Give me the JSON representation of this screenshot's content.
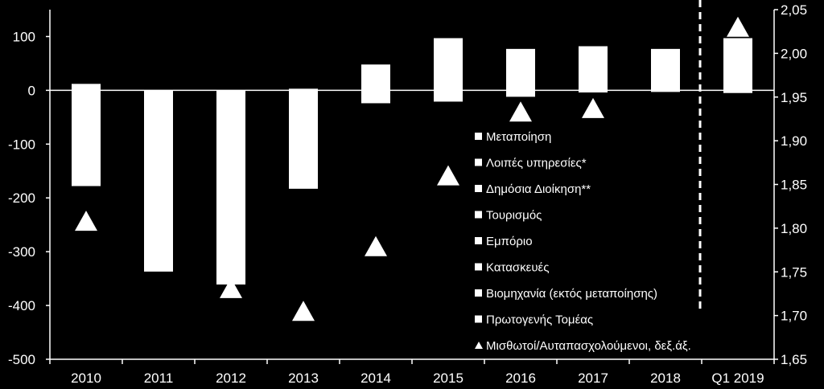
{
  "chart_data": {
    "type": "bar",
    "categories": [
      "2010",
      "2011",
      "2012",
      "2013",
      "2014",
      "2015",
      "2016",
      "2017",
      "2018",
      "Q1 2019"
    ],
    "left_axis": {
      "ylim": [
        -500,
        150
      ],
      "ticks": [
        100,
        0,
        -100,
        -200,
        -300,
        -400,
        -500
      ],
      "tick_labels": [
        "100",
        "0",
        "-100",
        "-200",
        "-300",
        "-400",
        "-500"
      ]
    },
    "right_axis": {
      "ylim": [
        1.65,
        2.05
      ],
      "ticks": [
        2.05,
        2.0,
        1.95,
        1.9,
        1.85,
        1.8,
        1.75,
        1.7,
        1.65
      ],
      "tick_labels": [
        "2,05",
        "2,00",
        "1,95",
        "1,90",
        "1,85",
        "1,80",
        "1,75",
        "1,70",
        "1,65"
      ]
    },
    "bars": [
      {
        "top": 12,
        "bottom": -178
      },
      {
        "top": 0,
        "bottom": -337
      },
      {
        "top": 0,
        "bottom": -361
      },
      {
        "top": 3,
        "bottom": -183
      },
      {
        "top": 48,
        "bottom": -24
      },
      {
        "top": 97,
        "bottom": -21
      },
      {
        "top": 77,
        "bottom": -12
      },
      {
        "top": 82,
        "bottom": -4
      },
      {
        "top": 77,
        "bottom": -3
      },
      {
        "top": 97,
        "bottom": -5
      }
    ],
    "ratio_series": {
      "name": "Μισθωτοί/Αυταπασχολούμενοι, δεξ.άξ.",
      "values": [
        1.808,
        null,
        1.731,
        1.705,
        1.779,
        1.86,
        1.933,
        1.937,
        null,
        2.03
      ]
    },
    "legend": [
      "Μεταποίηση",
      "Λοιπές υπηρεσίες*",
      "Δημόσια Διοίκηση**",
      "Τουρισμός",
      "Εμπόριο",
      "Κατασκευές",
      "Βιομηχανία (εκτός μεταποίησης)",
      "Πρωτογενής Τομέας",
      "Μισθωτοί/Αυταπασχολούμενοι, δεξ.άξ."
    ],
    "legend_placement": "center-right",
    "grid": false,
    "colors": {
      "background": "#000000",
      "bars": "#ffffff",
      "markers": "#ffffff",
      "axes": "#ffffff"
    }
  }
}
